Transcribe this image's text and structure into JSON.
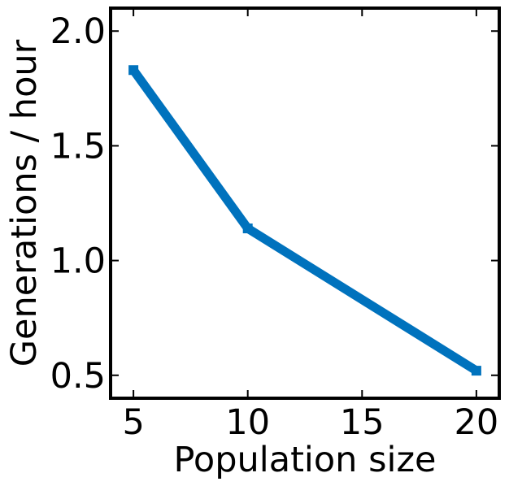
{
  "chart_data": {
    "type": "line",
    "title": "",
    "xlabel": "Population size",
    "ylabel": "Generations / hour",
    "xlim": [
      4,
      21
    ],
    "ylim": [
      0.4,
      2.1
    ],
    "xticks": [
      5,
      10,
      15,
      20
    ],
    "xtick_labels": [
      "5",
      "10",
      "15",
      "20"
    ],
    "yticks": [
      0.5,
      1.0,
      1.5,
      2.0
    ],
    "ytick_labels": [
      "0.5",
      "1.0",
      "1.5",
      "2.0"
    ],
    "grid": false,
    "legend": "none",
    "series": [
      {
        "color": "#0072bd",
        "marker": "square",
        "x": [
          5,
          10,
          20
        ],
        "y": [
          1.83,
          1.14,
          0.52
        ]
      }
    ]
  }
}
